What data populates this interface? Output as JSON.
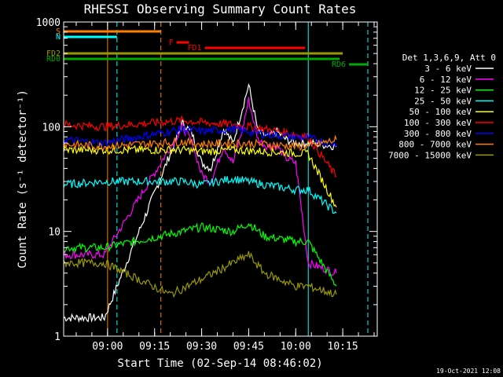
{
  "chart_data": {
    "type": "line",
    "title": "RHESSI Observing Summary Count Rates",
    "xlabel": "Start Time (02-Sep-14 08:46:02)",
    "ylabel": "Count Rate (s⁻¹ detector⁻¹)",
    "y_scale": "log",
    "ylim": [
      1,
      1000
    ],
    "xlim": [
      "08:46",
      "10:26"
    ],
    "x_ticks": [
      "09:00",
      "09:15",
      "09:30",
      "09:45",
      "10:00",
      "10:15"
    ],
    "y_ticks": [
      "1",
      "10",
      "100",
      "1000"
    ],
    "timestamp": "19-Oct-2021 12:08",
    "legend_title": "Det 1,3,6,9, Att 0",
    "legend_placement": "right",
    "series": [
      {
        "name": "3 - 6 keV",
        "color": "#ffffff",
        "x": [
          "08:46",
          "08:59",
          "09:24",
          "09:27",
          "09:30",
          "09:33",
          "09:37",
          "09:40",
          "09:43",
          "09:45",
          "09:48",
          "09:51",
          "09:54",
          "09:57",
          "10:00",
          "10:04",
          "10:13"
        ],
        "values": [
          1.5,
          1.5,
          110,
          85,
          45,
          40,
          95,
          70,
          150,
          250,
          90,
          80,
          90,
          75,
          70,
          70,
          65
        ]
      },
      {
        "name": "6 - 12 keV",
        "color": "#ff00ff",
        "x": [
          "08:46",
          "08:59",
          "09:24",
          "09:27",
          "09:30",
          "09:33",
          "09:37",
          "09:40",
          "09:43",
          "09:45",
          "09:48",
          "09:51",
          "09:54",
          "09:57",
          "10:00",
          "10:04",
          "10:13"
        ],
        "values": [
          6,
          6,
          100,
          70,
          35,
          30,
          65,
          45,
          95,
          180,
          75,
          65,
          65,
          50,
          45,
          5,
          4
        ]
      },
      {
        "name": "12 - 25 keV",
        "color": "#00ff00",
        "x": [
          "08:46",
          "08:59",
          "09:24",
          "09:30",
          "09:40",
          "09:45",
          "09:50",
          "10:00",
          "10:04",
          "10:13"
        ],
        "values": [
          7,
          7,
          10,
          11,
          10,
          12,
          9,
          8,
          8,
          3
        ]
      },
      {
        "name": "25 - 50 keV",
        "color": "#00ffff",
        "x": [
          "08:46",
          "08:59",
          "09:24",
          "09:30",
          "09:40",
          "09:50",
          "10:00",
          "10:04",
          "10:13"
        ],
        "values": [
          28,
          30,
          30,
          28,
          32,
          28,
          25,
          25,
          15
        ]
      },
      {
        "name": "50 - 100 keV",
        "color": "#ffff00",
        "x": [
          "08:46",
          "08:59",
          "09:24",
          "09:30",
          "09:40",
          "09:50",
          "10:00",
          "10:04",
          "10:13"
        ],
        "values": [
          60,
          60,
          60,
          58,
          60,
          58,
          56,
          55,
          17
        ]
      },
      {
        "name": "100 - 300 keV",
        "color": "#ff0000",
        "x": [
          "08:46",
          "08:59",
          "09:24",
          "09:30",
          "09:40",
          "09:50",
          "10:00",
          "10:04",
          "10:13"
        ],
        "values": [
          105,
          100,
          115,
          110,
          105,
          95,
          85,
          80,
          33
        ]
      },
      {
        "name": "300 - 800 keV",
        "color": "#0000ff",
        "x": [
          "08:46",
          "08:59",
          "09:24",
          "09:30",
          "09:40",
          "09:50",
          "10:00",
          "10:04",
          "10:13"
        ],
        "values": [
          75,
          70,
          95,
          90,
          95,
          85,
          80,
          78,
          68
        ]
      },
      {
        "name": "800 - 7000 keV",
        "color": "#ff8000",
        "x": [
          "08:46",
          "08:59",
          "09:24",
          "09:30",
          "09:40",
          "09:50",
          "10:00",
          "10:04",
          "10:13"
        ],
        "values": [
          68,
          65,
          72,
          68,
          70,
          68,
          65,
          65,
          75
        ]
      },
      {
        "name": "7000 - 15000 keV",
        "color": "#999900",
        "x": [
          "08:46",
          "08:59",
          "09:20",
          "09:30",
          "09:40",
          "09:45",
          "09:50",
          "10:00",
          "10:04",
          "10:13"
        ],
        "values": [
          5,
          5,
          2.5,
          3.5,
          5,
          6,
          4,
          3,
          3,
          2.5
        ]
      }
    ],
    "flags": [
      {
        "label": "S",
        "color": "#ff8000",
        "x_start": "08:46",
        "x_end": "09:17"
      },
      {
        "label": "N",
        "color": "#00ffff",
        "x_start": "08:46",
        "x_end": "09:03"
      },
      {
        "label": "F",
        "color": "#ff0000",
        "x_start": "09:22",
        "x_end": "09:26"
      },
      {
        "label": "FD1",
        "color": "#ff0000",
        "x_start": "09:31",
        "x_end": "10:03"
      },
      {
        "label": "FD2",
        "color": "#999900",
        "x_start": "08:46",
        "x_end": "10:15"
      },
      {
        "label": "RD0",
        "color": "#00aa00",
        "x_start": "08:46",
        "x_end": "10:14"
      },
      {
        "label": "RD6",
        "color": "#00aa00",
        "x_start": "10:17",
        "x_end": "10:23"
      }
    ],
    "vertical_markers": [
      {
        "x": "09:00",
        "color": "#ff8000",
        "style": "solid"
      },
      {
        "x": "09:03",
        "color": "#00ffff",
        "style": "dashed"
      },
      {
        "x": "09:17",
        "color": "#ff8000",
        "style": "dashed"
      },
      {
        "x": "10:04",
        "color": "#00ffff",
        "style": "solid"
      },
      {
        "x": "10:23",
        "color": "#00ffff",
        "style": "dashed"
      }
    ]
  }
}
